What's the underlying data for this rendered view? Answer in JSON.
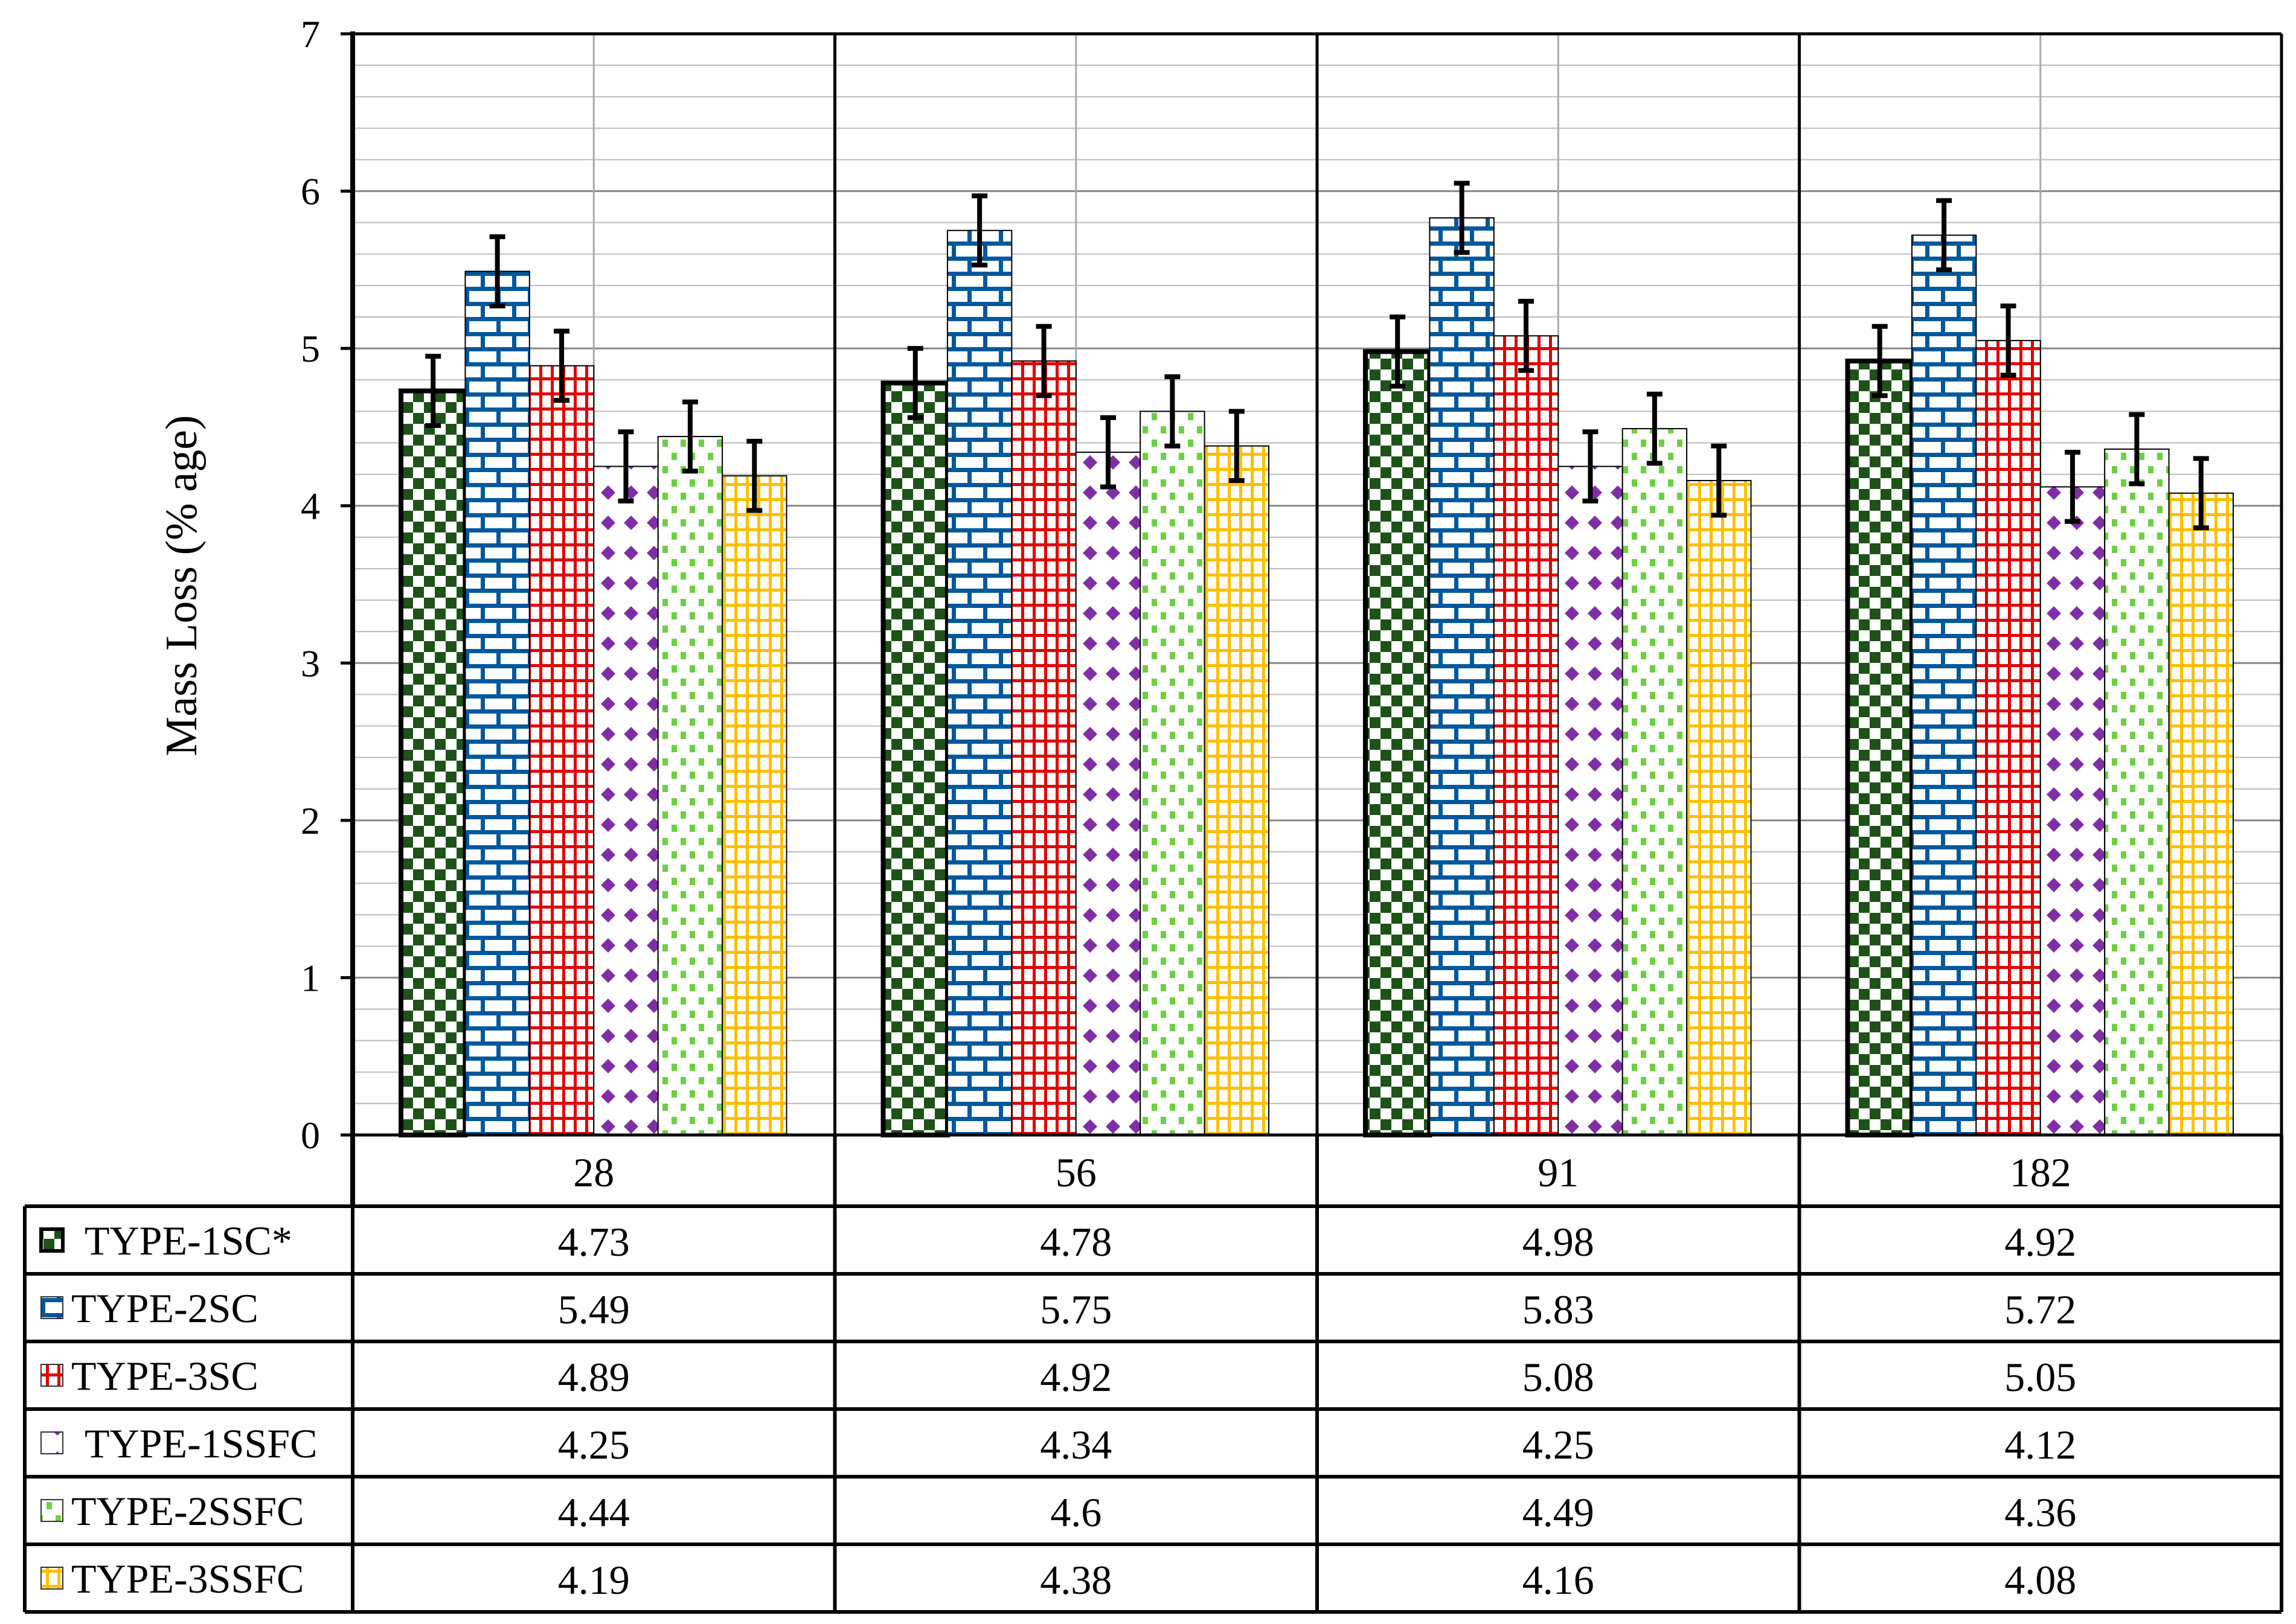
{
  "chart_data": {
    "type": "bar",
    "title": "",
    "xlabel": "",
    "ylabel": "Mass Loss (% age)",
    "ylim": [
      0,
      7
    ],
    "yticks": [
      0,
      1,
      2,
      3,
      4,
      5,
      6,
      7
    ],
    "minor_grid_step": 0.2,
    "grid": true,
    "legend_placement": "data-table-below",
    "categories": [
      "28",
      "56",
      "91",
      "182"
    ],
    "error_bar": 0.22,
    "series": [
      {
        "name": "TYPE-1SC*",
        "values": [
          4.73,
          4.78,
          4.98,
          4.92
        ],
        "color": "#1E5219",
        "pattern": "checker"
      },
      {
        "name": "TYPE-2SC",
        "values": [
          5.49,
          5.75,
          5.83,
          5.72
        ],
        "color": "#00589C",
        "pattern": "brick"
      },
      {
        "name": "TYPE-3SC",
        "values": [
          4.89,
          4.92,
          5.08,
          5.05
        ],
        "color": "#E00000",
        "pattern": "grid"
      },
      {
        "name": "TYPE-1SSFC",
        "values": [
          4.25,
          4.34,
          4.25,
          4.12
        ],
        "color": "#7F2FA5",
        "pattern": "diamond"
      },
      {
        "name": "TYPE-2SSFC",
        "values": [
          4.44,
          4.6,
          4.49,
          4.36
        ],
        "color": "#6ECF44",
        "pattern": "dots"
      },
      {
        "name": "TYPE-3SSFC",
        "values": [
          4.19,
          4.38,
          4.16,
          4.08
        ],
        "color": "#FFC000",
        "pattern": "grid"
      }
    ],
    "table_values": [
      [
        "4.73",
        "4.78",
        "4.98",
        "4.92"
      ],
      [
        "5.49",
        "5.75",
        "5.83",
        "5.72"
      ],
      [
        "4.89",
        "4.92",
        "5.08",
        "5.05"
      ],
      [
        "4.25",
        "4.34",
        "4.25",
        "4.12"
      ],
      [
        "4.44",
        "4.6",
        "4.49",
        "4.36"
      ],
      [
        "4.19",
        "4.38",
        "4.16",
        "4.08"
      ]
    ]
  }
}
